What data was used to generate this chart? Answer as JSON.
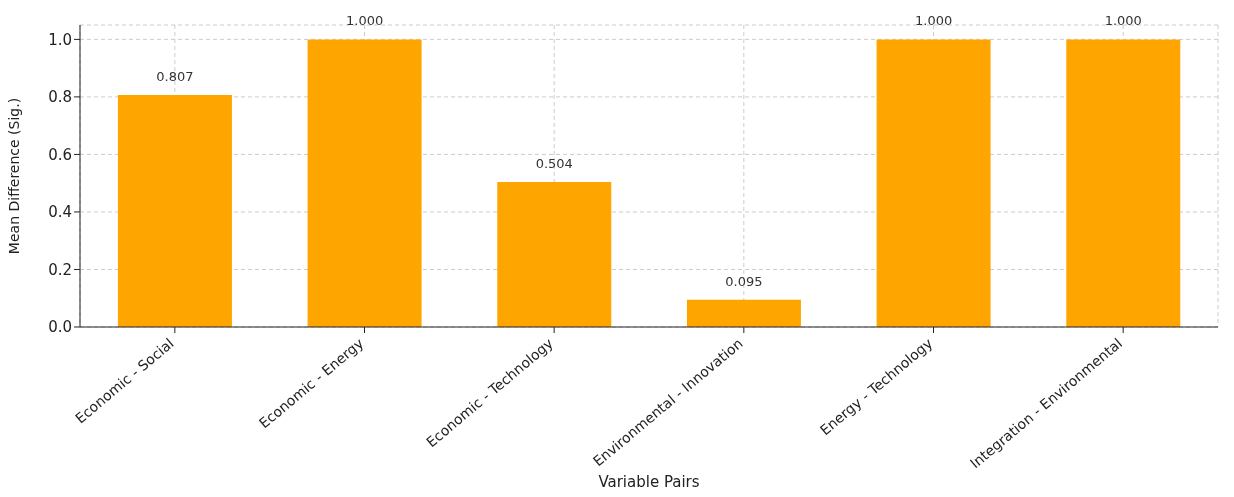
{
  "chart_data": {
    "type": "bar",
    "xlabel": "Variable Pairs",
    "ylabel": "Mean Difference (Sig.)",
    "categories": [
      "Economic - Social",
      "Economic - Energy",
      "Economic - Technology",
      "Environmental - Innovation",
      "Energy - Technology",
      "Integration - Environmental"
    ],
    "values": [
      0.807,
      1.0,
      0.504,
      0.095,
      1.0,
      1.0
    ],
    "value_labels": [
      "0.807",
      "1.000",
      "0.504",
      "0.095",
      "1.000",
      "1.000"
    ],
    "color": "#ffa500",
    "ylim": [
      0,
      1.05
    ],
    "yticks": [
      {
        "value": 0,
        "label": "0.0"
      },
      {
        "value": 0.2,
        "label": "0.2"
      },
      {
        "value": 0.4,
        "label": "0.4"
      },
      {
        "value": 0.6,
        "label": "0.6"
      },
      {
        "value": 0.8,
        "label": "0.8"
      },
      {
        "value": 1,
        "label": "1.0"
      }
    ],
    "grid": true
  }
}
